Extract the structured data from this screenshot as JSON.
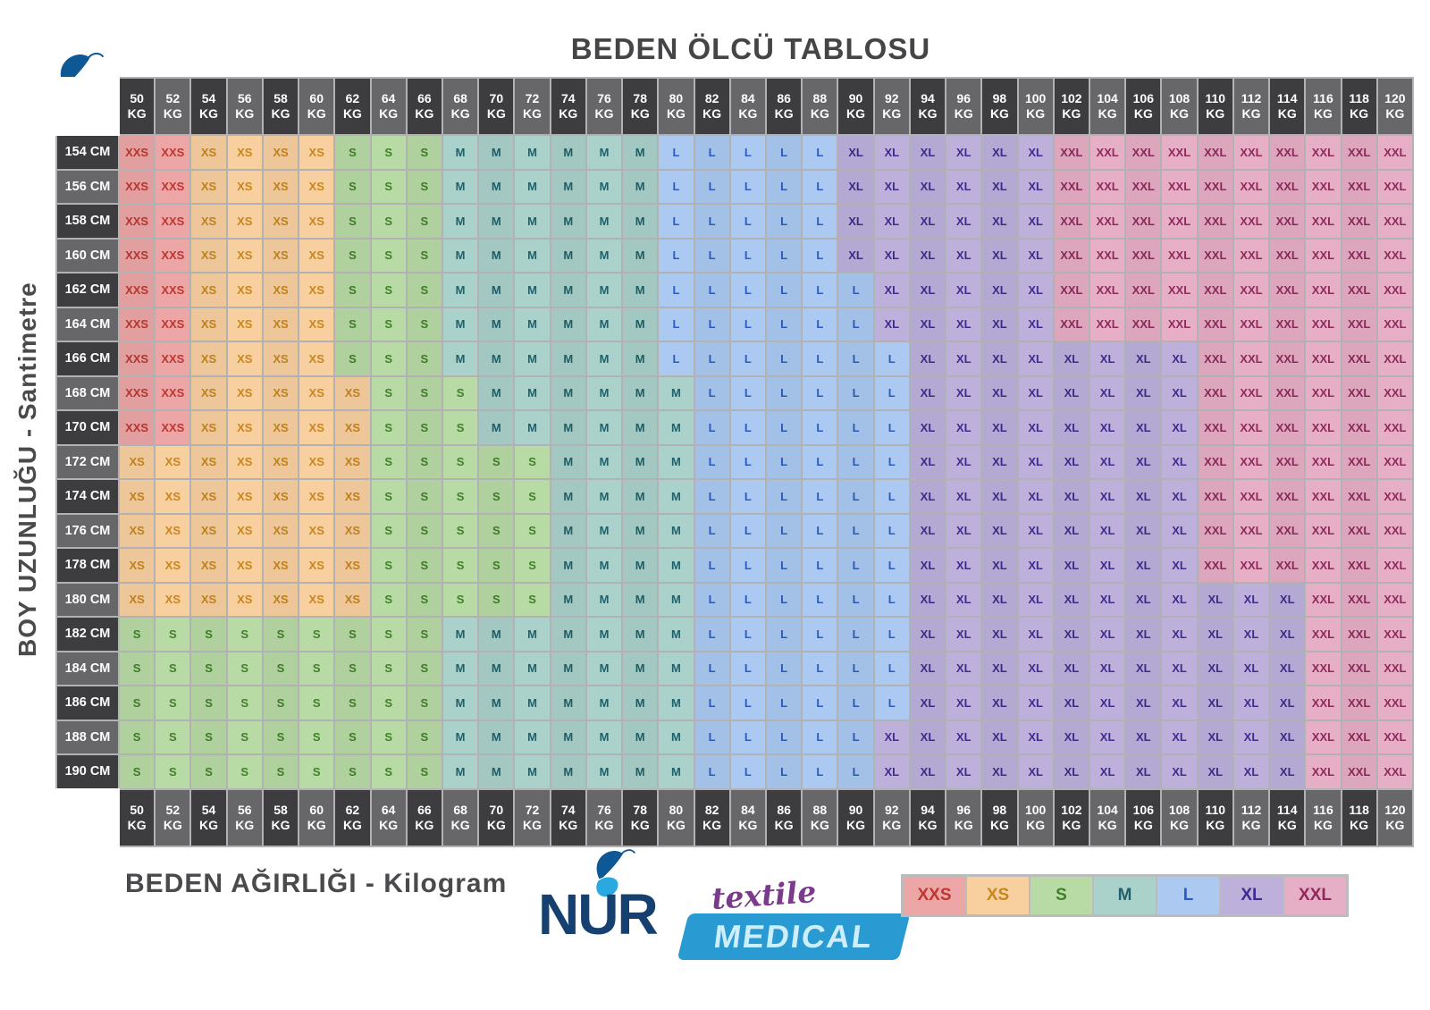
{
  "title": "BEDEN ÖLCÜ TABLOSU",
  "axis": {
    "left_label": "BOY UZUNLUĞU - Santimetre",
    "bottom_label": "BEDEN AĞIRLIĞI - Kilogram"
  },
  "weight_unit": "KG",
  "chart_data": {
    "type": "table",
    "title": "BEDEN ÖLCÜ TABLOSU",
    "xlabel": "BEDEN AĞIRLIĞI - Kilogram",
    "ylabel": "BOY UZUNLUĞU - Santimetre",
    "x_unit": "KG",
    "x_categories_kg": [
      "50",
      "52",
      "54",
      "56",
      "58",
      "60",
      "62",
      "64",
      "66",
      "68",
      "70",
      "72",
      "74",
      "76",
      "78",
      "80",
      "82",
      "84",
      "86",
      "88",
      "90",
      "92",
      "94",
      "96",
      "98",
      "100",
      "102",
      "104",
      "106",
      "108",
      "110",
      "112",
      "114",
      "116",
      "118",
      "120"
    ],
    "y_categories": [
      "154 CM",
      "156 CM",
      "158 CM",
      "160 CM",
      "162 CM",
      "164 CM",
      "166 CM",
      "168 CM",
      "170 CM",
      "172 CM",
      "174 CM",
      "176 CM",
      "178 CM",
      "180 CM",
      "182 CM",
      "184 CM",
      "186 CM",
      "188 CM",
      "190 CM"
    ],
    "cell_values_are": "size codes per (height,weight), encoded as run-length bands left to right",
    "rows": [
      {
        "height": "154 CM",
        "bands": [
          [
            "XXS",
            2
          ],
          [
            "XS",
            4
          ],
          [
            "S",
            3
          ],
          [
            "M",
            6
          ],
          [
            "L",
            5
          ],
          [
            "XL",
            6
          ],
          [
            "XXL",
            10
          ]
        ]
      },
      {
        "height": "156 CM",
        "bands": [
          [
            "XXS",
            2
          ],
          [
            "XS",
            4
          ],
          [
            "S",
            3
          ],
          [
            "M",
            6
          ],
          [
            "L",
            5
          ],
          [
            "XL",
            6
          ],
          [
            "XXL",
            10
          ]
        ]
      },
      {
        "height": "158 CM",
        "bands": [
          [
            "XXS",
            2
          ],
          [
            "XS",
            4
          ],
          [
            "S",
            3
          ],
          [
            "M",
            6
          ],
          [
            "L",
            5
          ],
          [
            "XL",
            6
          ],
          [
            "XXL",
            10
          ]
        ]
      },
      {
        "height": "160 CM",
        "bands": [
          [
            "XXS",
            2
          ],
          [
            "XS",
            4
          ],
          [
            "S",
            3
          ],
          [
            "M",
            6
          ],
          [
            "L",
            5
          ],
          [
            "XL",
            6
          ],
          [
            "XXL",
            10
          ]
        ]
      },
      {
        "height": "162 CM",
        "bands": [
          [
            "XXS",
            2
          ],
          [
            "XS",
            4
          ],
          [
            "S",
            3
          ],
          [
            "M",
            6
          ],
          [
            "L",
            6
          ],
          [
            "XL",
            5
          ],
          [
            "XXL",
            10
          ]
        ]
      },
      {
        "height": "164 CM",
        "bands": [
          [
            "XXS",
            2
          ],
          [
            "XS",
            4
          ],
          [
            "S",
            3
          ],
          [
            "M",
            6
          ],
          [
            "L",
            6
          ],
          [
            "XL",
            5
          ],
          [
            "XXL",
            10
          ]
        ]
      },
      {
        "height": "166 CM",
        "bands": [
          [
            "XXS",
            2
          ],
          [
            "XS",
            4
          ],
          [
            "S",
            3
          ],
          [
            "M",
            6
          ],
          [
            "L",
            7
          ],
          [
            "XL",
            8
          ],
          [
            "XXL",
            6
          ]
        ]
      },
      {
        "height": "168 CM",
        "bands": [
          [
            "XXS",
            2
          ],
          [
            "XS",
            5
          ],
          [
            "S",
            3
          ],
          [
            "M",
            6
          ],
          [
            "L",
            6
          ],
          [
            "XL",
            8
          ],
          [
            "XXL",
            6
          ]
        ]
      },
      {
        "height": "170 CM",
        "bands": [
          [
            "XXS",
            2
          ],
          [
            "XS",
            5
          ],
          [
            "S",
            3
          ],
          [
            "M",
            6
          ],
          [
            "L",
            6
          ],
          [
            "XL",
            8
          ],
          [
            "XXL",
            6
          ]
        ]
      },
      {
        "height": "172 CM",
        "bands": [
          [
            "XS",
            7
          ],
          [
            "S",
            5
          ],
          [
            "M",
            4
          ],
          [
            "L",
            6
          ],
          [
            "XL",
            8
          ],
          [
            "XXL",
            6
          ]
        ]
      },
      {
        "height": "174 CM",
        "bands": [
          [
            "XS",
            7
          ],
          [
            "S",
            5
          ],
          [
            "M",
            4
          ],
          [
            "L",
            6
          ],
          [
            "XL",
            8
          ],
          [
            "XXL",
            6
          ]
        ]
      },
      {
        "height": "176 CM",
        "bands": [
          [
            "XS",
            7
          ],
          [
            "S",
            5
          ],
          [
            "M",
            4
          ],
          [
            "L",
            6
          ],
          [
            "XL",
            8
          ],
          [
            "XXL",
            6
          ]
        ]
      },
      {
        "height": "178 CM",
        "bands": [
          [
            "XS",
            7
          ],
          [
            "S",
            5
          ],
          [
            "M",
            4
          ],
          [
            "L",
            6
          ],
          [
            "XL",
            8
          ],
          [
            "XXL",
            6
          ]
        ]
      },
      {
        "height": "180 CM",
        "bands": [
          [
            "XS",
            7
          ],
          [
            "S",
            5
          ],
          [
            "M",
            4
          ],
          [
            "L",
            6
          ],
          [
            "XL",
            11
          ],
          [
            "XXL",
            3
          ]
        ]
      },
      {
        "height": "182 CM",
        "bands": [
          [
            "S",
            9
          ],
          [
            "M",
            7
          ],
          [
            "L",
            6
          ],
          [
            "XL",
            11
          ],
          [
            "XXL",
            3
          ]
        ]
      },
      {
        "height": "184 CM",
        "bands": [
          [
            "S",
            9
          ],
          [
            "M",
            7
          ],
          [
            "L",
            6
          ],
          [
            "XL",
            11
          ],
          [
            "XXL",
            3
          ]
        ]
      },
      {
        "height": "186 CM",
        "bands": [
          [
            "S",
            9
          ],
          [
            "M",
            7
          ],
          [
            "L",
            6
          ],
          [
            "XL",
            11
          ],
          [
            "XXL",
            3
          ]
        ]
      },
      {
        "height": "188 CM",
        "bands": [
          [
            "S",
            9
          ],
          [
            "M",
            7
          ],
          [
            "L",
            5
          ],
          [
            "XL",
            12
          ],
          [
            "XXL",
            3
          ]
        ]
      },
      {
        "height": "190 CM",
        "bands": [
          [
            "S",
            9
          ],
          [
            "M",
            7
          ],
          [
            "L",
            5
          ],
          [
            "XL",
            12
          ],
          [
            "XXL",
            3
          ]
        ]
      }
    ]
  },
  "legend": {
    "items": [
      "XXS",
      "XS",
      "S",
      "M",
      "L",
      "XL",
      "XXL"
    ]
  },
  "logo": {
    "brand": "NUR",
    "script": "textile",
    "banner": "MEDICAL"
  },
  "palette": {
    "header_dark": "#3d3d3f",
    "header_light": "#67676a",
    "grid_line": "#b2b2b4",
    "title_color": "#454547",
    "logo_navy": "#15406f",
    "logo_purple": "#7b3b8c",
    "logo_blue": "#2a9ad2",
    "logo_text_light": "#cdeefb",
    "butterfly_dark": "#0f5896",
    "butterfly_light": "#2aa9e1",
    "sizes": {
      "XXS": {
        "bg": "#eca6a6",
        "fg": "#bf3730"
      },
      "XS": {
        "bg": "#f8d0a0",
        "fg": "#c8861f"
      },
      "S": {
        "bg": "#b8dba5",
        "fg": "#417f2a"
      },
      "M": {
        "bg": "#abd1cb",
        "fg": "#1f616b"
      },
      "L": {
        "bg": "#abc9f1",
        "fg": "#2b5cc5"
      },
      "XL": {
        "bg": "#bdb1dc",
        "fg": "#432a8e"
      },
      "XXL": {
        "bg": "#e6afc6",
        "fg": "#8f2a5c"
      }
    }
  }
}
